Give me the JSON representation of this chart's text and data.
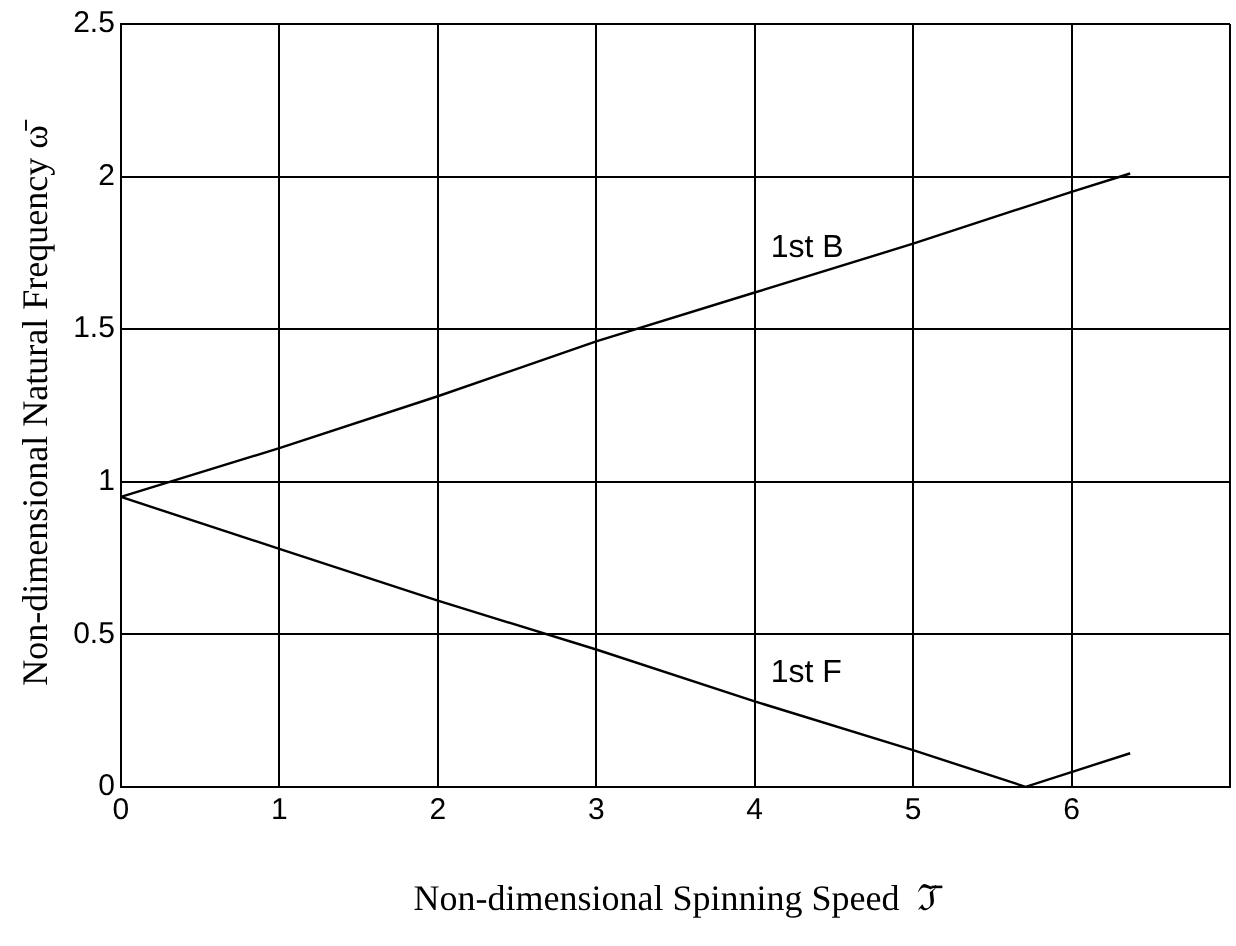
{
  "chart_data": {
    "type": "line",
    "xlabel": "Non-dimensional Spinning Speed  ℑ̄",
    "ylabel": "Non-dimensional Natural Frequency ω̄",
    "xlim": [
      0,
      7
    ],
    "xticks": [
      0,
      1,
      2,
      3,
      4,
      5,
      6,
      {
        "value": 7,
        "label": null
      }
    ],
    "ylim": [
      0,
      2.5
    ],
    "yticks": [
      0,
      0.5,
      1,
      1.5,
      2,
      2.5
    ],
    "grid": true,
    "legend": false,
    "marker": "none",
    "line_style": "solid",
    "series": [
      {
        "name": "1st B",
        "color": "#000000",
        "x": [
          0,
          1,
          2,
          3,
          4,
          5,
          6,
          6.37
        ],
        "values": [
          0.95,
          1.11,
          1.28,
          1.46,
          1.62,
          1.78,
          1.95,
          2.01
        ]
      },
      {
        "name": "1st F",
        "color": "#000000",
        "x": [
          0,
          1,
          2,
          3,
          4,
          5,
          5.71,
          6.37
        ],
        "values": [
          0.95,
          0.78,
          0.61,
          0.45,
          0.28,
          0.12,
          0,
          0.11
        ]
      }
    ]
  }
}
